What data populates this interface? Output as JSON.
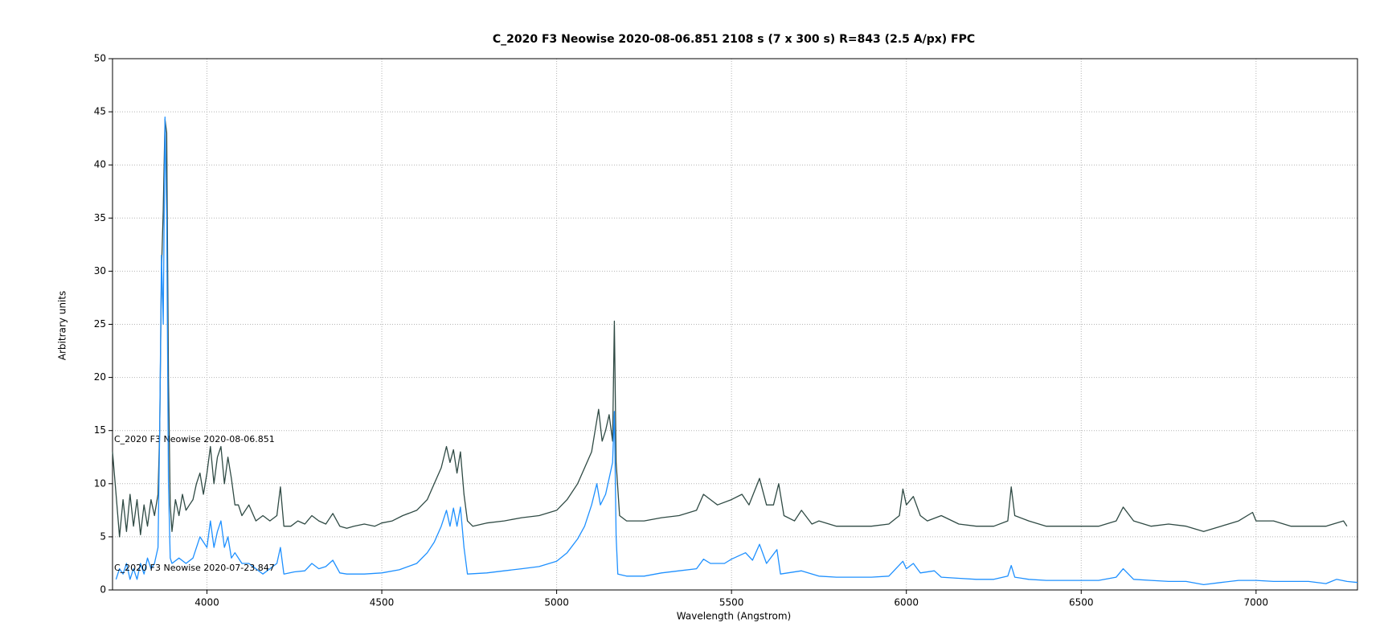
{
  "chart_data": {
    "type": "line",
    "title": "C_2020 F3 Neowise    2020-08-06.851   2108 s (7 x 300 s)   R=843 (2.5 A/px)  FPC",
    "x_label": "Wavelength (Angstrom)",
    "y_label": "Arbitrary units",
    "xlim": [
      3730,
      7290
    ],
    "ylim": [
      0,
      50
    ],
    "xticks": [
      4000,
      4500,
      5000,
      5500,
      6000,
      6500,
      7000
    ],
    "yticks": [
      0,
      5,
      10,
      15,
      20,
      25,
      30,
      35,
      40,
      45,
      50
    ],
    "grid": true,
    "series": [
      {
        "name": "C_2020 F3 Neowise  2020-08-06.851",
        "color": "#2f4a44",
        "x": [
          3730,
          3740,
          3750,
          3760,
          3770,
          3780,
          3790,
          3800,
          3810,
          3820,
          3830,
          3840,
          3850,
          3860,
          3865,
          3870,
          3875,
          3880,
          3885,
          3890,
          3895,
          3900,
          3910,
          3920,
          3930,
          3940,
          3950,
          3960,
          3970,
          3980,
          3990,
          4000,
          4010,
          4020,
          4030,
          4040,
          4050,
          4060,
          4070,
          4080,
          4090,
          4100,
          4120,
          4140,
          4160,
          4180,
          4200,
          4210,
          4220,
          4240,
          4260,
          4280,
          4300,
          4320,
          4340,
          4360,
          4380,
          4400,
          4420,
          4450,
          4480,
          4500,
          4530,
          4560,
          4600,
          4630,
          4650,
          4670,
          4685,
          4695,
          4705,
          4715,
          4725,
          4735,
          4745,
          4760,
          4800,
          4850,
          4900,
          4950,
          5000,
          5030,
          5060,
          5080,
          5100,
          5120,
          5130,
          5140,
          5150,
          5160,
          5165,
          5170,
          5180,
          5200,
          5250,
          5300,
          5350,
          5400,
          5420,
          5440,
          5460,
          5500,
          5530,
          5550,
          5580,
          5600,
          5620,
          5635,
          5650,
          5680,
          5700,
          5730,
          5750,
          5800,
          5850,
          5900,
          5950,
          5980,
          5990,
          6000,
          6020,
          6040,
          6060,
          6100,
          6150,
          6200,
          6250,
          6290,
          6300,
          6310,
          6350,
          6400,
          6450,
          6500,
          6550,
          6600,
          6620,
          6650,
          6700,
          6750,
          6800,
          6850,
          6900,
          6950,
          6990,
          7000,
          7050,
          7100,
          7150,
          7200,
          7250,
          7260
        ],
        "values": [
          13,
          9,
          5,
          8.5,
          5.5,
          9,
          6,
          8.5,
          5.2,
          8,
          6,
          8.5,
          7,
          9,
          15,
          30,
          35.7,
          44.3,
          43,
          20,
          8,
          5.5,
          8.5,
          7,
          9,
          7.5,
          8,
          8.5,
          10,
          11,
          9,
          11,
          13.5,
          10,
          12.5,
          13.5,
          10,
          12.5,
          10.5,
          8,
          8,
          7,
          8,
          6.5,
          7,
          6.5,
          7,
          9.7,
          6,
          6,
          6.5,
          6.2,
          7,
          6.5,
          6.2,
          7.2,
          6,
          5.8,
          6,
          6.2,
          6,
          6.3,
          6.5,
          7,
          7.5,
          8.5,
          10,
          11.5,
          13.5,
          12,
          13.2,
          11,
          13,
          9,
          6.5,
          6,
          6.3,
          6.5,
          6.8,
          7,
          7.5,
          8.5,
          10,
          11.5,
          13,
          17,
          14,
          15,
          16.5,
          14,
          25.3,
          12,
          7,
          6.5,
          6.5,
          6.8,
          7,
          7.5,
          9,
          8.5,
          8,
          8.5,
          9,
          8,
          10.5,
          8,
          8,
          10,
          7,
          6.5,
          7.5,
          6.2,
          6.5,
          6,
          6,
          6,
          6.2,
          7,
          9.5,
          8,
          8.8,
          7,
          6.5,
          7,
          6.2,
          6,
          6,
          6.5,
          9.7,
          7,
          6.5,
          6,
          6,
          6,
          6,
          6.5,
          7.8,
          6.5,
          6,
          6.2,
          6,
          5.5,
          6,
          6.5,
          7.3,
          6.5,
          6.5,
          6,
          6,
          6,
          6.5,
          6
        ]
      },
      {
        "name": "C_2020 F3 Neowise  2020-07-23.847",
        "color": "#1e90ff",
        "x": [
          3740,
          3750,
          3760,
          3770,
          3780,
          3790,
          3800,
          3810,
          3820,
          3830,
          3840,
          3850,
          3860,
          3865,
          3870,
          3875,
          3880,
          3885,
          3890,
          3895,
          3900,
          3920,
          3940,
          3960,
          3980,
          4000,
          4010,
          4020,
          4030,
          4040,
          4050,
          4060,
          4070,
          4080,
          4100,
          4120,
          4140,
          4160,
          4180,
          4200,
          4210,
          4220,
          4250,
          4280,
          4300,
          4320,
          4340,
          4360,
          4380,
          4400,
          4450,
          4500,
          4550,
          4600,
          4630,
          4650,
          4670,
          4685,
          4695,
          4705,
          4715,
          4725,
          4735,
          4745,
          4800,
          4850,
          4900,
          4950,
          5000,
          5030,
          5060,
          5080,
          5100,
          5115,
          5125,
          5140,
          5150,
          5160,
          5165,
          5170,
          5175,
          5200,
          5250,
          5300,
          5350,
          5400,
          5420,
          5440,
          5480,
          5500,
          5540,
          5560,
          5580,
          5600,
          5630,
          5640,
          5700,
          5750,
          5800,
          5850,
          5900,
          5950,
          5990,
          6000,
          6020,
          6040,
          6080,
          6100,
          6150,
          6200,
          6250,
          6290,
          6300,
          6310,
          6350,
          6400,
          6450,
          6500,
          6550,
          6600,
          6620,
          6650,
          6700,
          6750,
          6800,
          6850,
          6900,
          6950,
          7000,
          7050,
          7100,
          7150,
          7200,
          7230,
          7260,
          7290
        ],
        "values": [
          1,
          2,
          1.5,
          2.5,
          1,
          2,
          1,
          2.5,
          1.5,
          3,
          2,
          2.5,
          4,
          15,
          31.5,
          25,
          44.5,
          35,
          10,
          3,
          2.5,
          3,
          2.5,
          3,
          5,
          4,
          6.5,
          4,
          5.5,
          6.5,
          4,
          5,
          3,
          3.5,
          2.5,
          2.5,
          2,
          1.5,
          2,
          2.5,
          4,
          1.5,
          1.7,
          1.8,
          2.5,
          2,
          2.2,
          2.8,
          1.6,
          1.5,
          1.5,
          1.6,
          1.9,
          2.5,
          3.5,
          4.5,
          6,
          7.5,
          6,
          7.7,
          6,
          7.8,
          4,
          1.5,
          1.6,
          1.8,
          2,
          2.2,
          2.7,
          3.5,
          4.8,
          6,
          8,
          10,
          8,
          9,
          10.5,
          12,
          16.8,
          5,
          1.5,
          1.3,
          1.3,
          1.6,
          1.8,
          2,
          2.9,
          2.5,
          2.5,
          2.9,
          3.5,
          2.8,
          4.3,
          2.5,
          3.8,
          1.5,
          1.8,
          1.3,
          1.2,
          1.2,
          1.2,
          1.3,
          2.7,
          2,
          2.5,
          1.6,
          1.8,
          1.2,
          1.1,
          1,
          1,
          1.3,
          2.3,
          1.2,
          1,
          0.9,
          0.9,
          0.9,
          0.9,
          1.2,
          2,
          1,
          0.9,
          0.8,
          0.8,
          0.5,
          0.7,
          0.9,
          0.9,
          0.8,
          0.8,
          0.8,
          0.6,
          1,
          0.8,
          0.7
        ]
      }
    ]
  }
}
